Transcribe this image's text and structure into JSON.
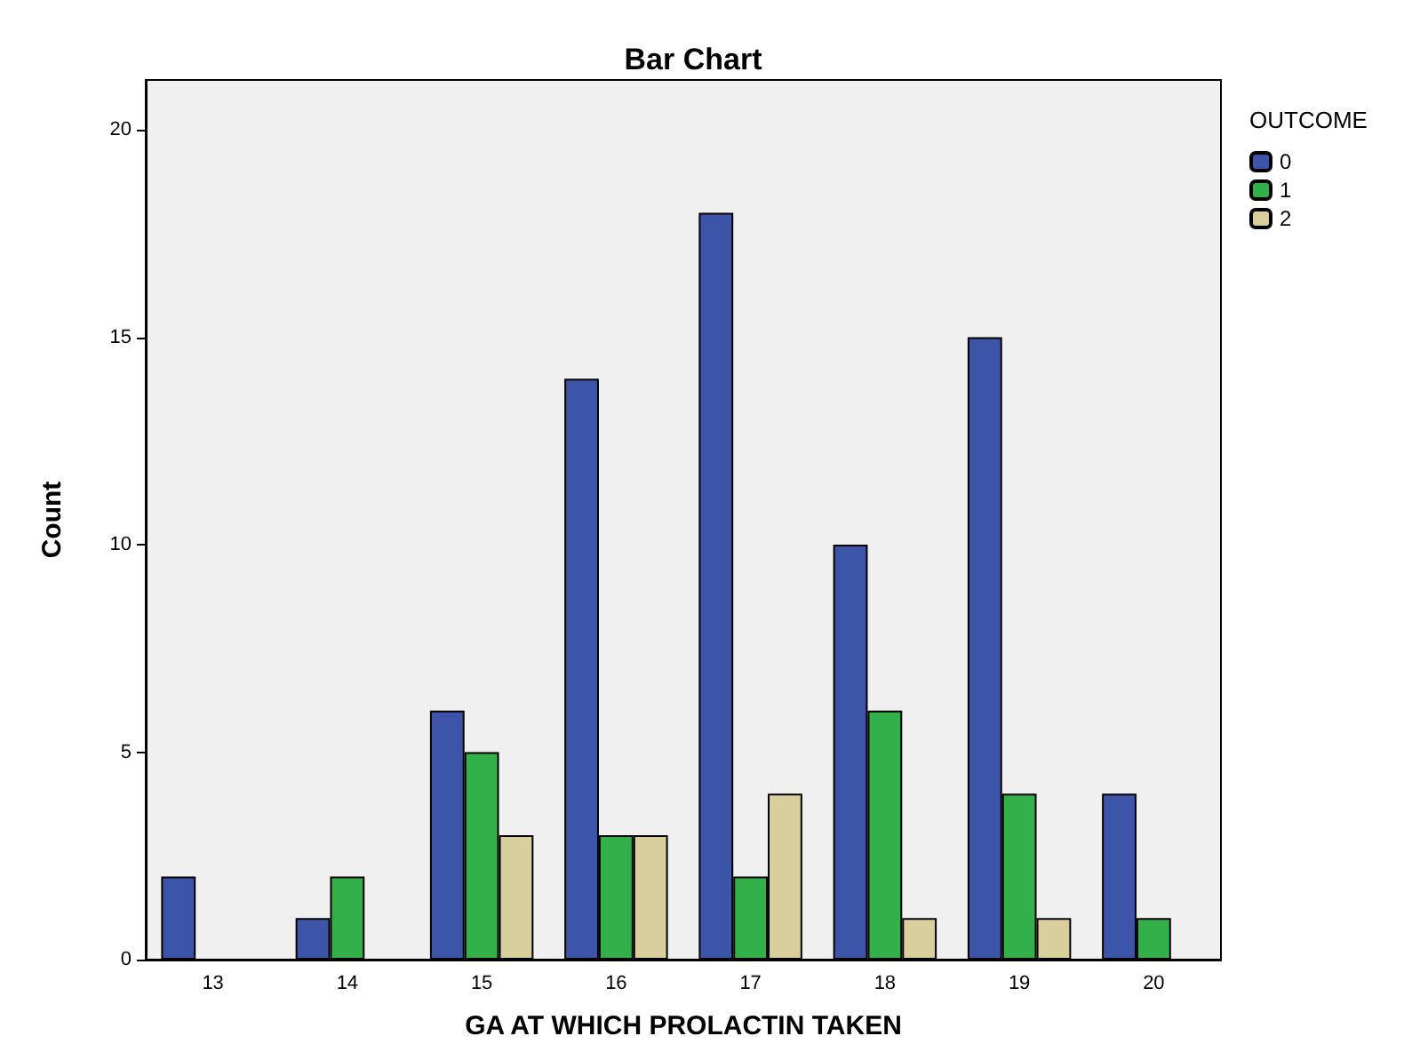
{
  "chart_data": {
    "type": "bar",
    "title": "Bar Chart",
    "xlabel": "GA AT WHICH PROLACTIN TAKEN",
    "ylabel": "Count",
    "legend_title": "OUTCOME",
    "categories": [
      "13",
      "14",
      "15",
      "16",
      "17",
      "18",
      "19",
      "20"
    ],
    "series": [
      {
        "name": "0",
        "color": "#3d55a8",
        "values": [
          2,
          1,
          6,
          14,
          18,
          10,
          15,
          4
        ]
      },
      {
        "name": "1",
        "color": "#33b04a",
        "values": [
          null,
          2,
          5,
          3,
          2,
          6,
          4,
          1
        ]
      },
      {
        "name": "2",
        "color": "#d8cf9c",
        "values": [
          null,
          null,
          3,
          3,
          4,
          1,
          1,
          null
        ]
      }
    ],
    "ylim": [
      0,
      21.2
    ],
    "yticks": [
      0,
      5,
      10,
      15,
      20
    ],
    "grid": false,
    "legend": "top right"
  }
}
